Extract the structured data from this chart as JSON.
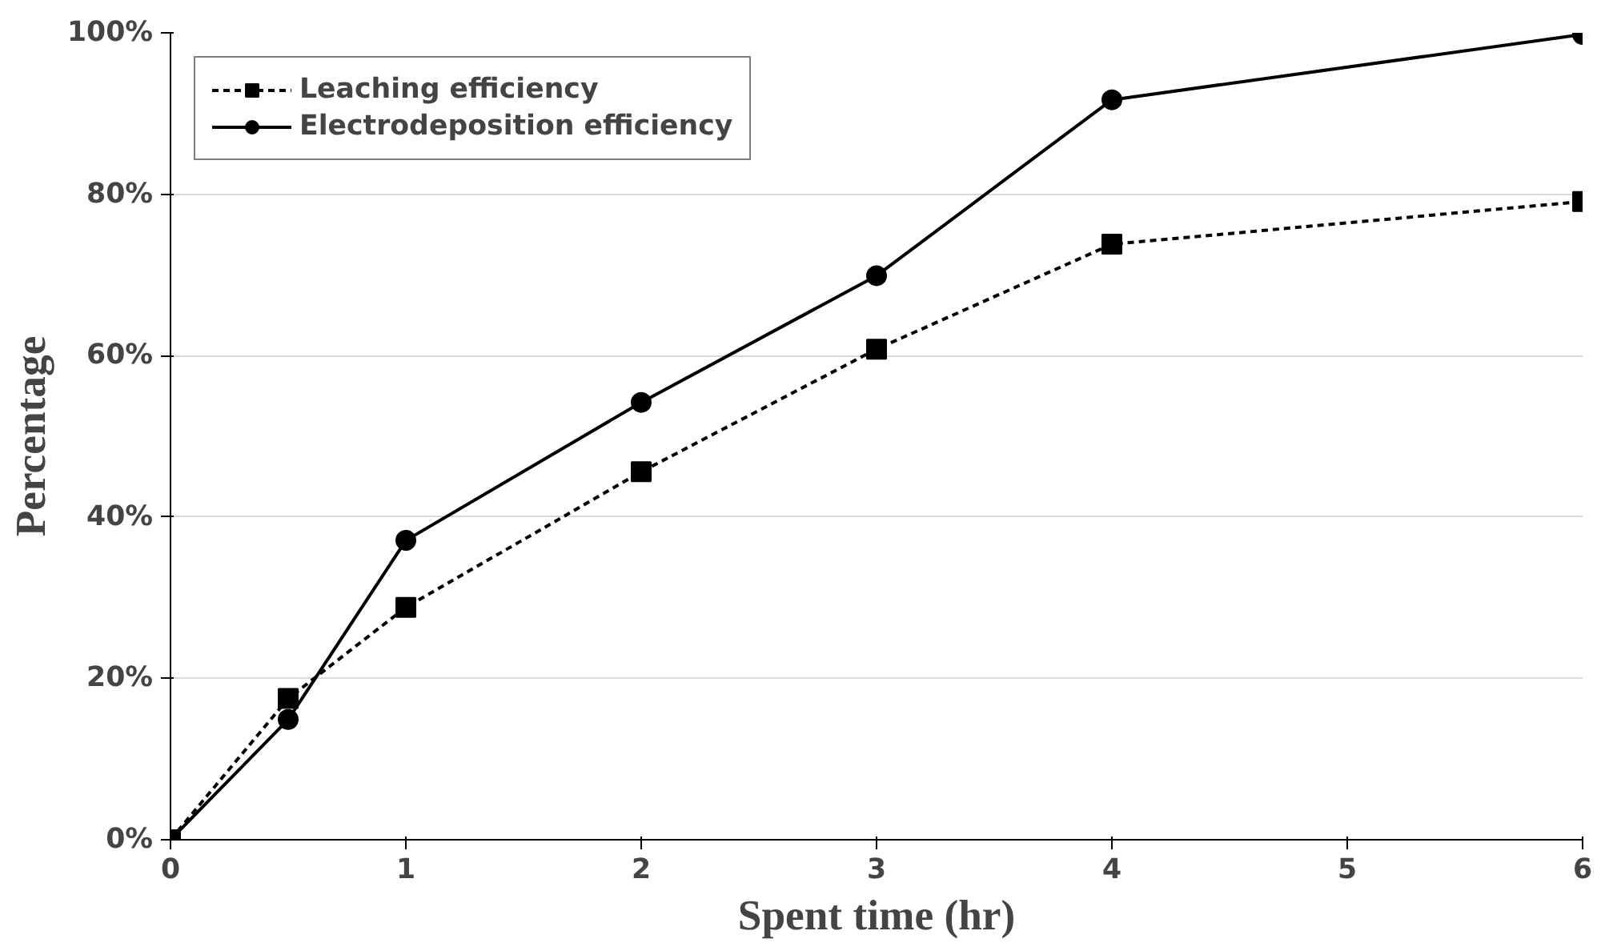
{
  "chart_data": {
    "type": "line",
    "xlabel": "Spent time (hr)",
    "ylabel": "Percentage",
    "x": [
      0,
      0.5,
      1,
      2,
      3,
      4,
      6
    ],
    "series": [
      {
        "name": "Leaching efficiency",
        "color": "#000000",
        "marker": "square",
        "line_style": "dashed",
        "values": [
          0,
          17.5,
          28.8,
          45.6,
          60.8,
          73.8,
          79.1
        ]
      },
      {
        "name": "Electrodeposition efficiency",
        "color": "#000000",
        "marker": "circle",
        "line_style": "solid",
        "values": [
          0,
          14.9,
          37.1,
          54.2,
          69.9,
          91.7,
          99.8
        ]
      }
    ],
    "xlim": [
      0,
      6
    ],
    "xticks": [
      0,
      1,
      2,
      3,
      4,
      5,
      6
    ],
    "ylim": [
      0,
      100
    ],
    "yticks": [
      {
        "value": 0,
        "label": "0%"
      },
      {
        "value": 20,
        "label": "20%"
      },
      {
        "value": 40,
        "label": "40%"
      },
      {
        "value": 60,
        "label": "60%"
      },
      {
        "value": 80,
        "label": "80%"
      },
      {
        "value": 100,
        "label": "100%"
      }
    ],
    "grid": "y",
    "legend": "top left"
  }
}
